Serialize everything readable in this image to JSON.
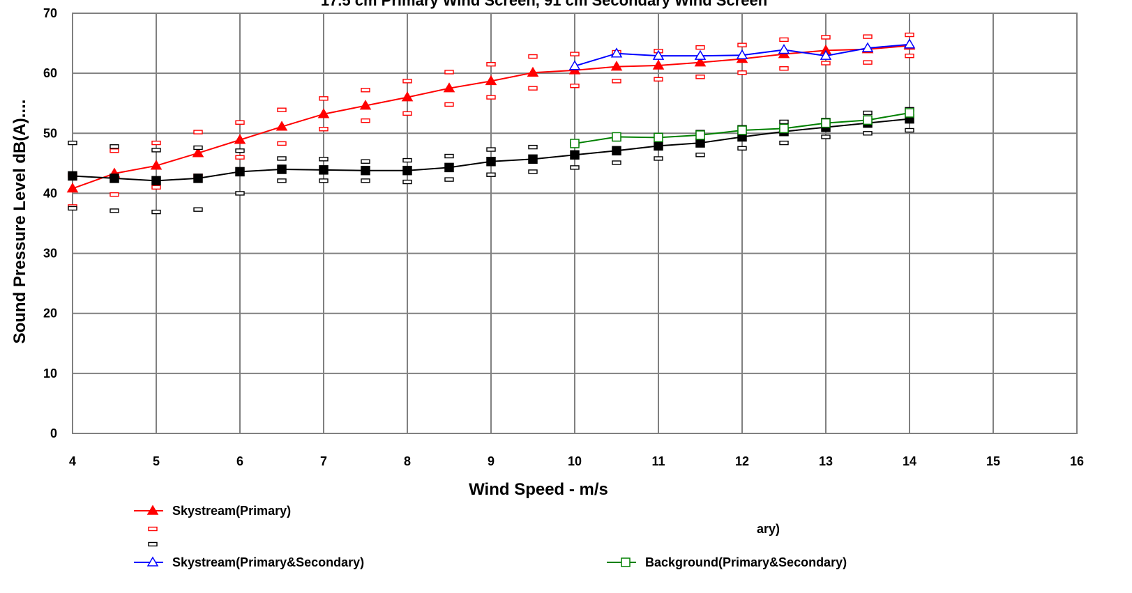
{
  "chart_data": {
    "type": "line",
    "title": "17.5 cm Primary Wind Screen, 91 cm Secondary Wind Screen",
    "xlabel": "Wind Speed - m/s",
    "ylabel": "Sound Pressure Level dB(A)....",
    "xlim": [
      4,
      16
    ],
    "ylim": [
      0,
      70
    ],
    "xticks": [
      "4",
      "5",
      "6",
      "7",
      "8",
      "9",
      "10",
      "11",
      "12",
      "13",
      "14",
      "15",
      "16"
    ],
    "yticks": [
      "0",
      "10",
      "20",
      "30",
      "40",
      "50",
      "60",
      "70"
    ],
    "grid": true,
    "legend_position": "bottom",
    "series": [
      {
        "name": "Skystream(Primary)",
        "color": "#ff0000",
        "marker": "filled-triangle",
        "x": [
          4,
          4.5,
          5,
          5.5,
          6,
          6.5,
          7,
          7.5,
          8,
          8.5,
          9,
          9.5,
          10,
          10.5,
          11,
          11.5,
          12,
          12.5,
          13,
          13.5,
          14
        ],
        "y": [
          40.8,
          43.3,
          44.6,
          46.7,
          48.9,
          51.1,
          53.2,
          54.6,
          56.0,
          57.5,
          58.7,
          60.1,
          60.5,
          61.1,
          61.3,
          61.8,
          62.4,
          63.2,
          63.8,
          64.0,
          64.6
        ],
        "upper": [
          43.0,
          47.1,
          48.4,
          50.2,
          51.8,
          53.9,
          55.8,
          57.2,
          58.7,
          60.2,
          61.5,
          62.8,
          63.2,
          63.5,
          63.7,
          64.3,
          64.7,
          65.6,
          66.0,
          66.1,
          66.4
        ],
        "lower": [
          37.8,
          39.8,
          41.0,
          42.9,
          46.0,
          48.3,
          50.7,
          52.1,
          53.3,
          54.8,
          56.0,
          57.5,
          57.9,
          58.7,
          59.0,
          59.4,
          60.1,
          60.8,
          61.7,
          61.8,
          62.9
        ]
      },
      {
        "name": "Background(Primary)",
        "color": "#000000",
        "marker": "filled-square",
        "x": [
          4,
          4.5,
          5,
          5.5,
          6,
          6.5,
          7,
          7.5,
          8,
          8.5,
          9,
          9.5,
          10,
          10.5,
          11,
          11.5,
          12,
          12.5,
          13,
          13.5,
          14
        ],
        "y": [
          42.9,
          42.5,
          42.1,
          42.5,
          43.6,
          44.0,
          43.9,
          43.8,
          43.8,
          44.3,
          45.3,
          45.7,
          46.4,
          47.1,
          47.9,
          48.4,
          49.4,
          50.3,
          51.0,
          51.7,
          52.4
        ],
        "upper": [
          48.4,
          47.8,
          47.2,
          47.6,
          47.1,
          45.8,
          45.7,
          45.3,
          45.5,
          46.2,
          47.3,
          47.7,
          48.2,
          49.0,
          49.7,
          50.2,
          51.0,
          51.9,
          52.2,
          53.4,
          54.0
        ],
        "lower": [
          37.5,
          37.1,
          36.9,
          37.3,
          40.0,
          42.1,
          42.1,
          42.1,
          41.9,
          42.3,
          43.1,
          43.6,
          44.3,
          45.1,
          45.8,
          46.4,
          47.5,
          48.4,
          49.4,
          50.0,
          50.5
        ]
      },
      {
        "name": "Skystream(Primary&Secondary)",
        "color": "#0000ff",
        "marker": "open-triangle",
        "x": [
          10,
          10.5,
          11,
          11.5,
          12,
          12.5,
          13,
          13.5,
          14
        ],
        "y": [
          61.2,
          63.3,
          62.9,
          62.9,
          63.0,
          63.9,
          62.9,
          64.2,
          64.8
        ]
      },
      {
        "name": "Background(Primary&Secondary)",
        "color": "#008000",
        "marker": "open-square",
        "x": [
          10,
          10.5,
          11,
          11.5,
          12,
          12.5,
          13,
          13.5,
          14
        ],
        "y": [
          48.3,
          49.4,
          49.3,
          49.7,
          50.5,
          50.8,
          51.7,
          52.2,
          53.4
        ]
      }
    ]
  },
  "legend": {
    "entries": [
      {
        "label": "Skystream(Primary)",
        "color": "#ff0000",
        "marker": "filled-triangle"
      },
      {
        "label": "",
        "color": "#ff0000",
        "marker": "dash"
      },
      {
        "label": "",
        "color": "#000000",
        "marker": "dash"
      },
      {
        "label": "Skystream(Primary&Secondary)",
        "color": "#0000ff",
        "marker": "open-triangle"
      },
      {
        "label": "ary)",
        "color": "",
        "marker": "none"
      },
      {
        "label": "Background(Primary&Secondary)",
        "color": "#008000",
        "marker": "open-square"
      }
    ]
  }
}
